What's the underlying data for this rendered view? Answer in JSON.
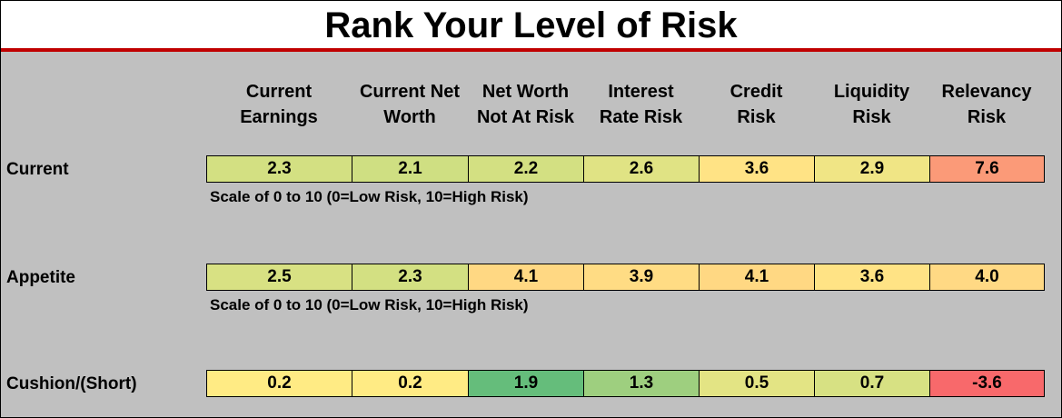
{
  "title": "Rank Your Level of Risk",
  "columns": [
    {
      "line1": "Current",
      "line2": "Earnings"
    },
    {
      "line1": "Current Net",
      "line2": "Worth"
    },
    {
      "line1": "Net Worth",
      "line2": "Not At Risk"
    },
    {
      "line1": "Interest",
      "line2": "Rate Risk"
    },
    {
      "line1": "Credit",
      "line2": "Risk"
    },
    {
      "line1": "Liquidity",
      "line2": "Risk"
    },
    {
      "line1": "Relevancy",
      "line2": "Risk"
    }
  ],
  "rows": [
    {
      "label": "Current",
      "values": [
        "2.3",
        "2.1",
        "2.2",
        "2.6",
        "3.6",
        "2.9",
        "7.6"
      ],
      "colors": [
        "#d3e082",
        "#cfdf82",
        "#d3e082",
        "#e0e384",
        "#ffe385",
        "#f0e585",
        "#fb9a78"
      ]
    },
    {
      "label": "Appetite",
      "values": [
        "2.5",
        "2.3",
        "4.1",
        "3.9",
        "4.1",
        "3.6",
        "4.0"
      ],
      "colors": [
        "#d8e183",
        "#d3e082",
        "#ffd883",
        "#ffdc84",
        "#ffd883",
        "#ffe385",
        "#ffd984"
      ]
    },
    {
      "label": "Cushion/(Short)",
      "values": [
        "0.2",
        "0.2",
        "1.9",
        "1.3",
        "0.5",
        "0.7",
        "-3.6"
      ],
      "colors": [
        "#ffeb84",
        "#ffeb84",
        "#65bd7b",
        "#9ecf7f",
        "#e3e484",
        "#d7e183",
        "#f8696b"
      ]
    }
  ],
  "scale_note": "Scale of 0 to 10 (0=Low Risk, 10=High Risk)"
}
